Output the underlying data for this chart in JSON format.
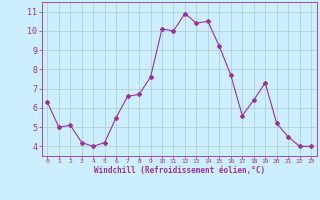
{
  "x": [
    0,
    1,
    2,
    3,
    4,
    5,
    6,
    7,
    8,
    9,
    10,
    11,
    12,
    13,
    14,
    15,
    16,
    17,
    18,
    19,
    20,
    21,
    22,
    23
  ],
  "y": [
    6.3,
    5.0,
    5.1,
    4.2,
    4.0,
    4.2,
    5.5,
    6.6,
    6.7,
    7.6,
    10.1,
    10.0,
    10.9,
    10.4,
    10.5,
    9.2,
    7.7,
    5.6,
    6.4,
    7.3,
    5.2,
    4.5,
    4.0,
    4.0
  ],
  "ylim": [
    3.5,
    11.5
  ],
  "xlim": [
    -0.5,
    23.5
  ],
  "yticks": [
    4,
    5,
    6,
    7,
    8,
    9,
    10,
    11
  ],
  "xticks": [
    0,
    1,
    2,
    3,
    4,
    5,
    6,
    7,
    8,
    9,
    10,
    11,
    12,
    13,
    14,
    15,
    16,
    17,
    18,
    19,
    20,
    21,
    22,
    23
  ],
  "xlabel": "Windchill (Refroidissement éolien,°C)",
  "line_color": "#993399",
  "marker": "D",
  "marker_size": 2.0,
  "bg_color": "#cceeff",
  "grid_color": "#aacccc",
  "tick_color": "#993399",
  "label_color": "#993399",
  "font_family": "monospace",
  "xtick_fontsize": 4.5,
  "ytick_fontsize": 6.0,
  "xlabel_fontsize": 5.5
}
